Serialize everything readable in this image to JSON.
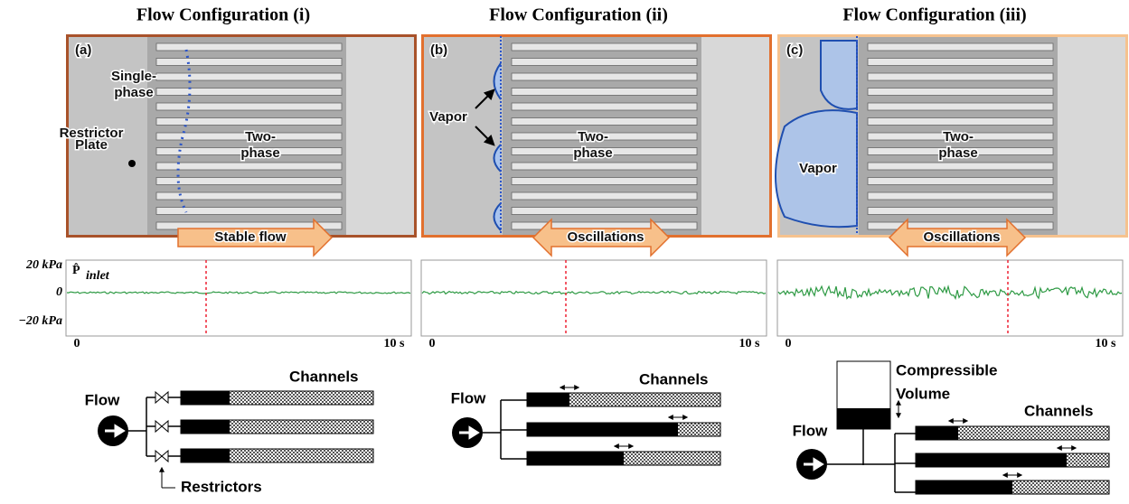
{
  "panels": [
    {
      "title": "Flow Configuration (i)",
      "label": "(a)",
      "arrow": "Stable flow",
      "annotations": [
        [
          "Single-",
          "phase"
        ],
        [
          "Two-",
          "phase"
        ],
        [
          "Restrictor",
          "Plate"
        ]
      ]
    },
    {
      "title": "Flow Configuration (ii)",
      "label": "(b)",
      "arrow": "Oscillations",
      "annotations": [
        [
          "Vapor"
        ],
        [
          "Two-",
          "phase"
        ]
      ]
    },
    {
      "title": "Flow Configuration (iii)",
      "label": "(c)",
      "arrow": "Oscillations",
      "annotations": [
        [
          "Vapor"
        ],
        [
          "Two-",
          "phase"
        ]
      ]
    }
  ],
  "trace": {
    "symbol": "P̂",
    "subscript": "inlet",
    "y_labels": [
      "20 kPa",
      "0",
      "−20 kPa"
    ],
    "x_labels": [
      "0",
      "10 s"
    ]
  },
  "schematic": {
    "flow": "Flow",
    "channels": "Channels",
    "restrictors": "Restrictors",
    "volume": [
      "Compressible",
      "Volume"
    ]
  }
}
